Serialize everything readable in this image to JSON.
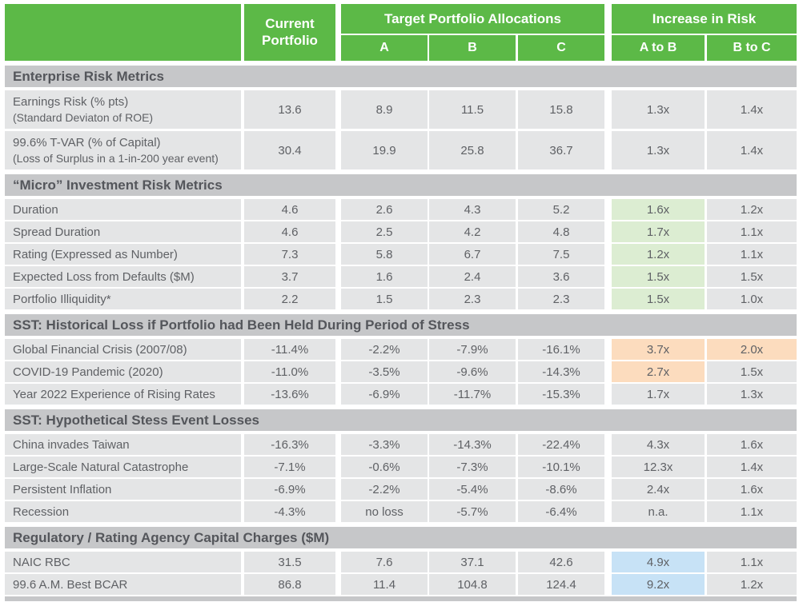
{
  "colors": {
    "header_green": "#5cb947",
    "section_band_gray": "#c6c7c9",
    "cell_gray": "#e4e5e6",
    "text_dark": "#54565b",
    "text_row": "#5f6165",
    "header_text": "#ffffff",
    "highlight_green": "#dcedd2",
    "highlight_orange": "#fcdcbe",
    "highlight_blue": "#c7e2f6"
  },
  "header": {
    "current_portfolio": "Current Portfolio",
    "target_group": "Target Portfolio Allocations",
    "risk_group": "Increase in Risk",
    "cols": {
      "a": "A",
      "b": "B",
      "c": "C",
      "ab": "A to B",
      "bc": "B to C"
    }
  },
  "sections": [
    {
      "title": "Enterprise Risk Metrics",
      "rows": [
        {
          "label": "Earnings Risk (% pts)",
          "sublabel": "(Standard Deviaton of ROE)",
          "current": "13.6",
          "a": "8.9",
          "b": "11.5",
          "c": "15.8",
          "ab": "1.3x",
          "bc": "1.4x"
        },
        {
          "label": "99.6% T-VAR (% of Capital)",
          "sublabel": "(Loss of Surplus in a 1-in-200 year event)",
          "current": "30.4",
          "a": "19.9",
          "b": "25.8",
          "c": "36.7",
          "ab": "1.3x",
          "bc": "1.4x"
        }
      ]
    },
    {
      "title": "“Micro” Investment Risk Metrics",
      "rows": [
        {
          "label": "Duration",
          "current": "4.6",
          "a": "2.6",
          "b": "4.3",
          "c": "5.2",
          "ab": "1.6x",
          "bc": "1.2x",
          "ab_highlight": "green"
        },
        {
          "label": "Spread Duration",
          "current": "4.6",
          "a": "2.5",
          "b": "4.2",
          "c": "4.8",
          "ab": "1.7x",
          "bc": "1.1x",
          "ab_highlight": "green"
        },
        {
          "label": "Rating (Expressed as Number)",
          "current": "7.3",
          "a": "5.8",
          "b": "6.7",
          "c": "7.5",
          "ab": "1.2x",
          "bc": "1.1x",
          "ab_highlight": "green"
        },
        {
          "label": "Expected Loss from Defaults ($M)",
          "current": "3.7",
          "a": "1.6",
          "b": "2.4",
          "c": "3.6",
          "ab": "1.5x",
          "bc": "1.5x",
          "ab_highlight": "green"
        },
        {
          "label": "Portfolio Illiquidity*",
          "current": "2.2",
          "a": "1.5",
          "b": "2.3",
          "c": "2.3",
          "ab": "1.5x",
          "bc": "1.0x",
          "ab_highlight": "green"
        }
      ]
    },
    {
      "title": "SST: Historical Loss if Portfolio had Been Held During Period of Stress",
      "rows": [
        {
          "label": "Global Financial Crisis (2007/08)",
          "current": "-11.4%",
          "a": "-2.2%",
          "b": "-7.9%",
          "c": "-16.1%",
          "ab": "3.7x",
          "bc": "2.0x",
          "ab_highlight": "orange",
          "bc_highlight": "orange"
        },
        {
          "label": "COVID-19 Pandemic (2020)",
          "current": "-11.0%",
          "a": "-3.5%",
          "b": "-9.6%",
          "c": "-14.3%",
          "ab": "2.7x",
          "bc": "1.5x",
          "ab_highlight": "orange"
        },
        {
          "label": "Year 2022 Experience of Rising Rates",
          "current": "-13.6%",
          "a": "-6.9%",
          "b": "-11.7%",
          "c": "-15.3%",
          "ab": "1.7x",
          "bc": "1.3x"
        }
      ]
    },
    {
      "title": "SST: Hypothetical Stess Event Losses",
      "rows": [
        {
          "label": "China invades Taiwan",
          "current": "-16.3%",
          "a": "-3.3%",
          "b": "-14.3%",
          "c": "-22.4%",
          "ab": "4.3x",
          "bc": "1.6x"
        },
        {
          "label": "Large-Scale Natural Catastrophe",
          "current": "-7.1%",
          "a": "-0.6%",
          "b": "-7.3%",
          "c": "-10.1%",
          "ab": "12.3x",
          "bc": "1.4x"
        },
        {
          "label": "Persistent Inflation",
          "current": "-6.9%",
          "a": "-2.2%",
          "b": "-5.4%",
          "c": "-8.6%",
          "ab": "2.4x",
          "bc": "1.6x"
        },
        {
          "label": "Recession",
          "current": "-4.3%",
          "a": "no loss",
          "b": "-5.7%",
          "c": "-6.4%",
          "ab": "n.a.",
          "bc": "1.1x"
        }
      ]
    },
    {
      "title": "Regulatory / Rating Agency Capital Charges ($M)",
      "rows": [
        {
          "label": "NAIC RBC",
          "current": "31.5",
          "a": "7.6",
          "b": "37.1",
          "c": "42.6",
          "ab": "4.9x",
          "bc": "1.1x",
          "ab_highlight": "blue"
        },
        {
          "label": "99.6 A.M. Best BCAR",
          "current": "86.8",
          "a": "11.4",
          "b": "104.8",
          "c": "124.4",
          "ab": "9.2x",
          "bc": "1.2x",
          "ab_highlight": "blue"
        }
      ]
    }
  ]
}
